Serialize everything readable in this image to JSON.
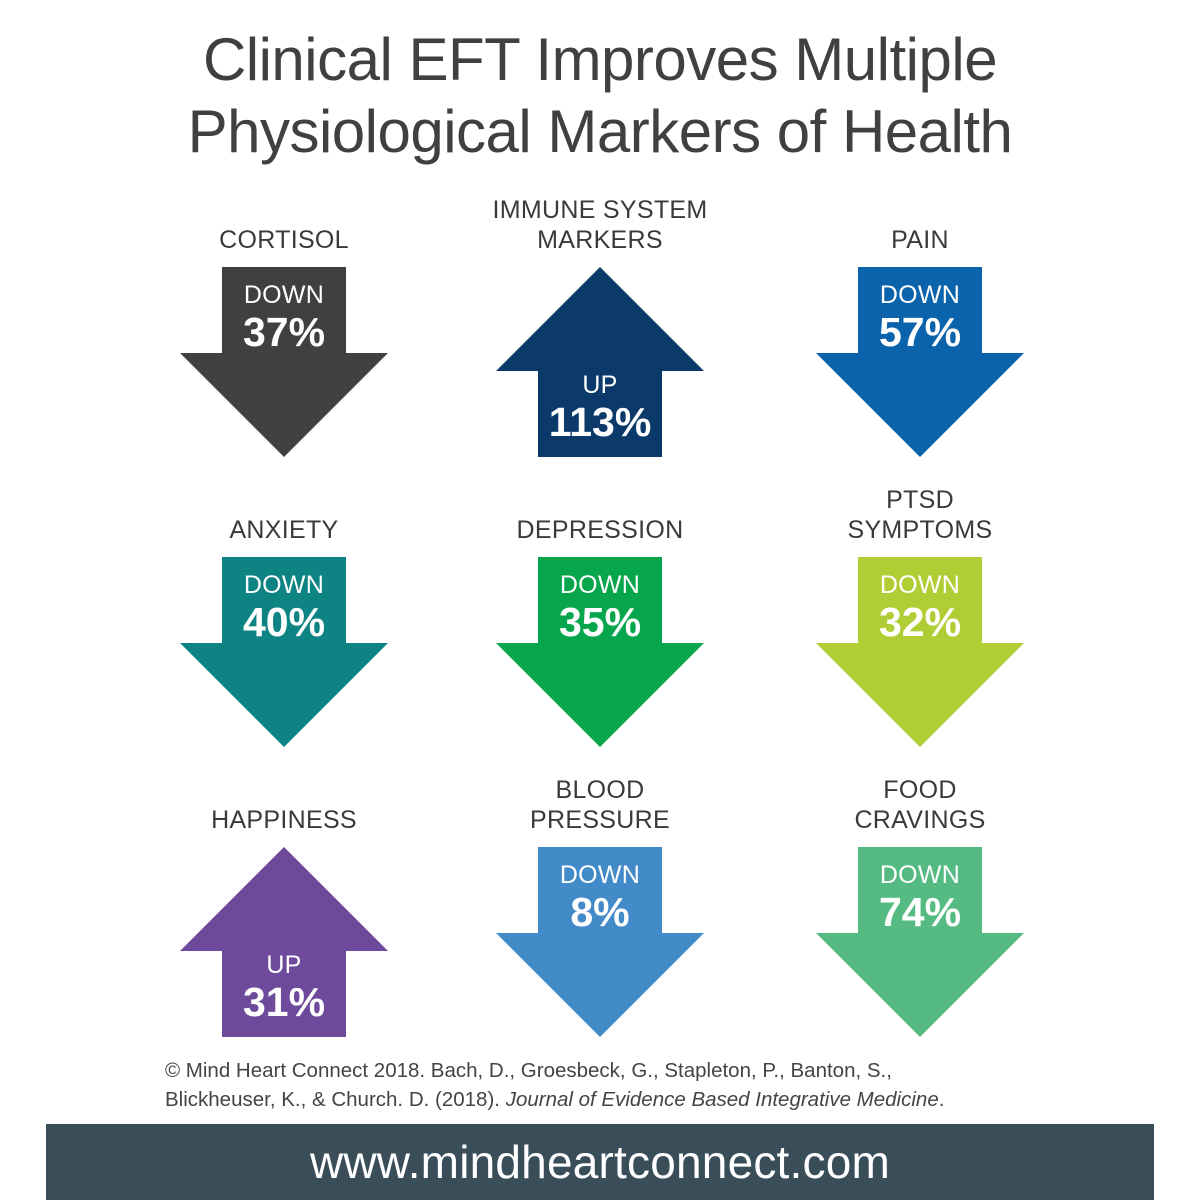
{
  "title": {
    "line1": "Clinical EFT Improves Multiple",
    "line2": "Physiological Markers of Health"
  },
  "markers": [
    {
      "label_lines": [
        "CORTISOL"
      ],
      "direction": "DOWN",
      "percent": "37%",
      "color": "#404040"
    },
    {
      "label_lines": [
        "IMMUNE SYSTEM",
        "MARKERS"
      ],
      "direction": "UP",
      "percent": "113%",
      "color": "#0b3a6a"
    },
    {
      "label_lines": [
        "PAIN"
      ],
      "direction": "DOWN",
      "percent": "57%",
      "color": "#0b63ac"
    },
    {
      "label_lines": [
        "ANXIETY"
      ],
      "direction": "DOWN",
      "percent": "40%",
      "color": "#0e8383"
    },
    {
      "label_lines": [
        "DEPRESSION"
      ],
      "direction": "DOWN",
      "percent": "35%",
      "color": "#07a64c"
    },
    {
      "label_lines": [
        "PTSD",
        "SYMPTOMS"
      ],
      "direction": "DOWN",
      "percent": "32%",
      "color": "#b1cd35"
    },
    {
      "label_lines": [
        "HAPPINESS"
      ],
      "direction": "UP",
      "percent": "31%",
      "color": "#6d4a9c"
    },
    {
      "label_lines": [
        "BLOOD",
        "PRESSURE"
      ],
      "direction": "DOWN",
      "percent": "8%",
      "color": "#438ac8"
    },
    {
      "label_lines": [
        "FOOD",
        "CRAVINGS"
      ],
      "direction": "DOWN",
      "percent": "74%",
      "color": "#55bb83"
    }
  ],
  "citation": {
    "line1": "© Mind Heart Connect 2018. Bach, D., Groesbeck, G., Stapleton, P., Banton, S.,",
    "line2_plain": "Blickheuser, K., & Church. D. (2018). ",
    "line2_journal": "Journal of Evidence Based Integrative Medicine",
    "line2_end": "."
  },
  "footer": {
    "url": "www.mindheartconnect.com",
    "background": "#3a4e5a"
  }
}
